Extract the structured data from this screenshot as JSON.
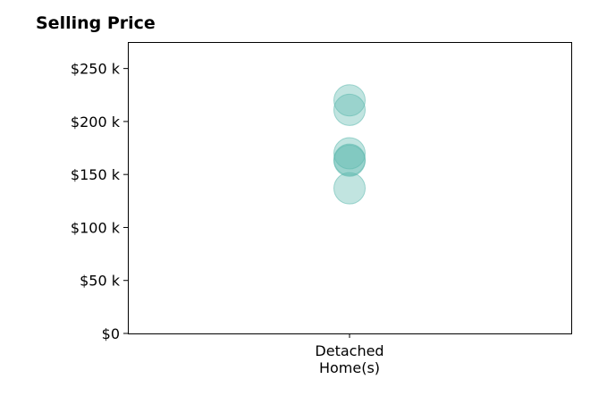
{
  "chart_data": {
    "type": "scatter",
    "title": "Selling Price",
    "xlabel": "",
    "ylabel": "",
    "categories": [
      [
        "Detached",
        "Home(s)"
      ]
    ],
    "series": [
      {
        "category_index": 0,
        "values": [
          220000,
          211000,
          170000,
          164000,
          163000,
          137000
        ]
      }
    ],
    "ylim": [
      0,
      275000
    ],
    "yticks": [
      0,
      50000,
      100000,
      150000,
      200000,
      250000
    ],
    "ytick_labels": [
      "$0",
      "$50 k",
      "$100 k",
      "$150 k",
      "$200 k",
      "$250 k"
    ],
    "grid": false,
    "marker_color": "#5bb8ad",
    "marker_alpha": 0.38
  }
}
